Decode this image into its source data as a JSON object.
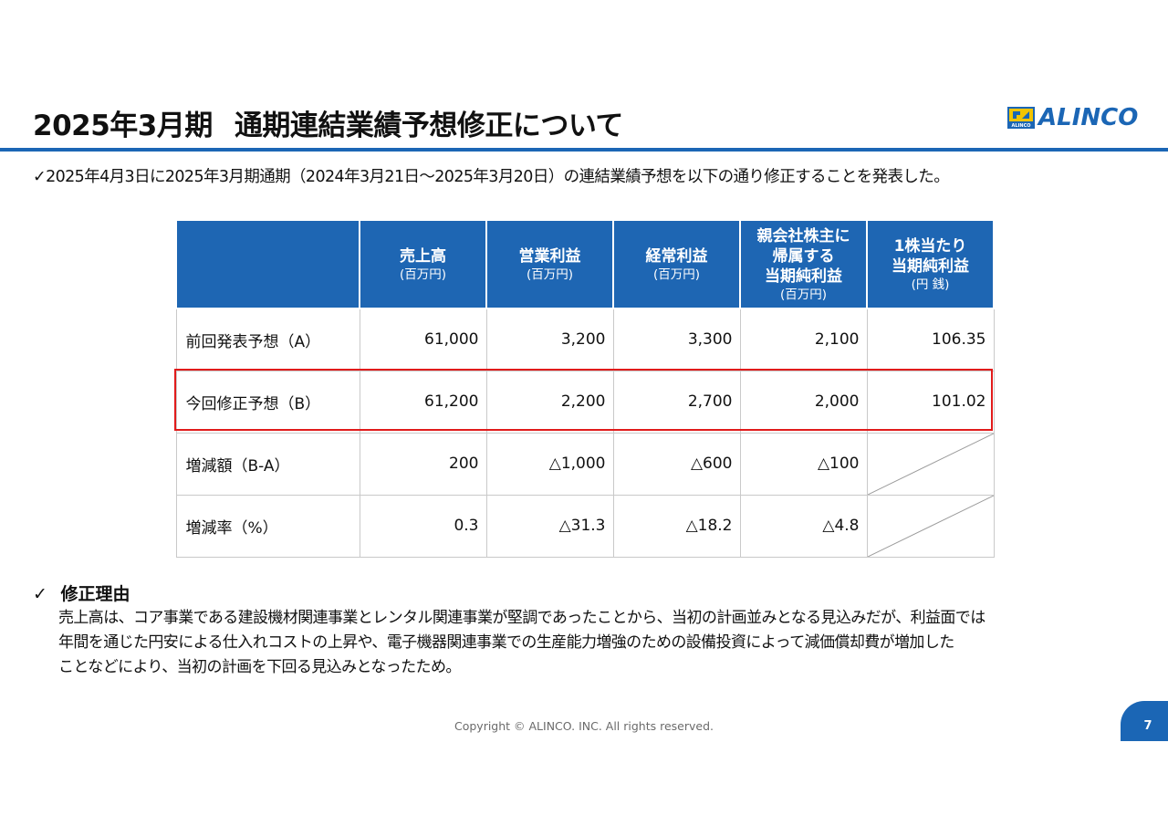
{
  "slide": {
    "title_part1": "2025年3月期",
    "title_part2": "通期連結業績予想修正について",
    "logo_text": "ALINCO",
    "logo_mark_text": "ALINCO",
    "lead": "✓2025年4月3日に2025年3月期通期（2024年3月21日～2025年3月20日）の連結業績予想を以下の通り修正することを発表した。"
  },
  "table": {
    "columns": [
      {
        "main": [
          "売上高"
        ],
        "sub": "(百万円)"
      },
      {
        "main": [
          "営業利益"
        ],
        "sub": "(百万円)"
      },
      {
        "main": [
          "経常利益"
        ],
        "sub": "(百万円)"
      },
      {
        "main": [
          "親会社株主に",
          "帰属する",
          "当期純利益"
        ],
        "sub": "(百万円)"
      },
      {
        "main": [
          "1株当たり",
          "当期純利益"
        ],
        "sub": "(円 銭)"
      }
    ],
    "rows": [
      {
        "label": "前回発表予想（A）",
        "values": [
          "61,000",
          "3,200",
          "3,300",
          "2,100",
          "106.35"
        ]
      },
      {
        "label": "今回修正予想（B）",
        "values": [
          "61,200",
          "2,200",
          "2,700",
          "2,000",
          "101.02"
        ]
      },
      {
        "label": "増減額（B-A）",
        "values": [
          "200",
          "△1,000",
          "△600",
          "△100",
          ""
        ]
      },
      {
        "label": "増減率（%）",
        "values": [
          "0.3",
          "△31.3",
          "△18.2",
          "△4.8",
          ""
        ]
      }
    ]
  },
  "reason": {
    "check": "✓",
    "heading": "修正理由",
    "lines": [
      "売上高は、コア事業である建設機材関連事業とレンタル関連事業が堅調であったことから、当初の計画並みとなる見込みだが、利益面では",
      "年間を通じた円安による仕入れコストの上昇や、電子機器関連事業での生産能力増強のための設備投資によって減価償却費が増加した",
      "ことなどにより、当初の計画を下回る見込みとなったため。"
    ]
  },
  "footer": {
    "copyright": "Copyright © ALINCO. INC. All rights reserved.",
    "page_number": "7"
  },
  "colors": {
    "brand_blue": "#1b66b5",
    "header_blue": "#1e66b3",
    "highlight_red": "#e11b1b"
  },
  "icons": {
    "logo": "alinco-logo-mark",
    "check": "check-icon",
    "na_cell": "diagonal-slash"
  }
}
